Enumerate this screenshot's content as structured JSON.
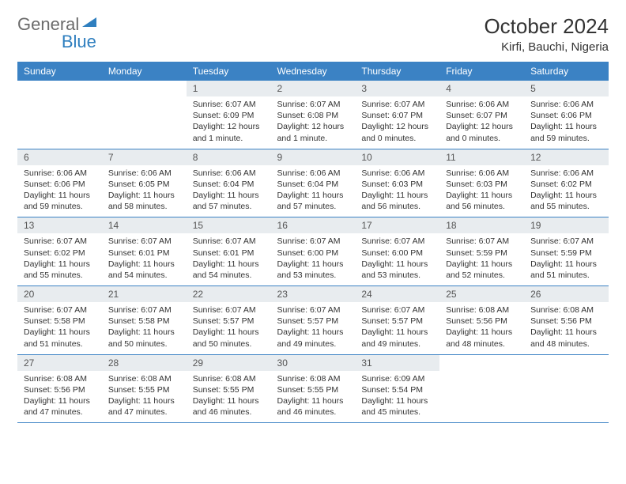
{
  "logo": {
    "word1": "General",
    "word2": "Blue"
  },
  "title": "October 2024",
  "location": "Kirfi, Bauchi, Nigeria",
  "colors": {
    "header_bg": "#3b82c4",
    "header_text": "#ffffff",
    "daynum_bg": "#e8ecef",
    "border": "#3b82c4",
    "logo_gray": "#6b6b6b",
    "logo_blue": "#2f7fbf"
  },
  "weekdays": [
    "Sunday",
    "Monday",
    "Tuesday",
    "Wednesday",
    "Thursday",
    "Friday",
    "Saturday"
  ],
  "grid": [
    [
      {
        "n": "",
        "sr": "",
        "ss": "",
        "dl": ""
      },
      {
        "n": "",
        "sr": "",
        "ss": "",
        "dl": ""
      },
      {
        "n": "1",
        "sr": "Sunrise: 6:07 AM",
        "ss": "Sunset: 6:09 PM",
        "dl": "Daylight: 12 hours and 1 minute."
      },
      {
        "n": "2",
        "sr": "Sunrise: 6:07 AM",
        "ss": "Sunset: 6:08 PM",
        "dl": "Daylight: 12 hours and 1 minute."
      },
      {
        "n": "3",
        "sr": "Sunrise: 6:07 AM",
        "ss": "Sunset: 6:07 PM",
        "dl": "Daylight: 12 hours and 0 minutes."
      },
      {
        "n": "4",
        "sr": "Sunrise: 6:06 AM",
        "ss": "Sunset: 6:07 PM",
        "dl": "Daylight: 12 hours and 0 minutes."
      },
      {
        "n": "5",
        "sr": "Sunrise: 6:06 AM",
        "ss": "Sunset: 6:06 PM",
        "dl": "Daylight: 11 hours and 59 minutes."
      }
    ],
    [
      {
        "n": "6",
        "sr": "Sunrise: 6:06 AM",
        "ss": "Sunset: 6:06 PM",
        "dl": "Daylight: 11 hours and 59 minutes."
      },
      {
        "n": "7",
        "sr": "Sunrise: 6:06 AM",
        "ss": "Sunset: 6:05 PM",
        "dl": "Daylight: 11 hours and 58 minutes."
      },
      {
        "n": "8",
        "sr": "Sunrise: 6:06 AM",
        "ss": "Sunset: 6:04 PM",
        "dl": "Daylight: 11 hours and 57 minutes."
      },
      {
        "n": "9",
        "sr": "Sunrise: 6:06 AM",
        "ss": "Sunset: 6:04 PM",
        "dl": "Daylight: 11 hours and 57 minutes."
      },
      {
        "n": "10",
        "sr": "Sunrise: 6:06 AM",
        "ss": "Sunset: 6:03 PM",
        "dl": "Daylight: 11 hours and 56 minutes."
      },
      {
        "n": "11",
        "sr": "Sunrise: 6:06 AM",
        "ss": "Sunset: 6:03 PM",
        "dl": "Daylight: 11 hours and 56 minutes."
      },
      {
        "n": "12",
        "sr": "Sunrise: 6:06 AM",
        "ss": "Sunset: 6:02 PM",
        "dl": "Daylight: 11 hours and 55 minutes."
      }
    ],
    [
      {
        "n": "13",
        "sr": "Sunrise: 6:07 AM",
        "ss": "Sunset: 6:02 PM",
        "dl": "Daylight: 11 hours and 55 minutes."
      },
      {
        "n": "14",
        "sr": "Sunrise: 6:07 AM",
        "ss": "Sunset: 6:01 PM",
        "dl": "Daylight: 11 hours and 54 minutes."
      },
      {
        "n": "15",
        "sr": "Sunrise: 6:07 AM",
        "ss": "Sunset: 6:01 PM",
        "dl": "Daylight: 11 hours and 54 minutes."
      },
      {
        "n": "16",
        "sr": "Sunrise: 6:07 AM",
        "ss": "Sunset: 6:00 PM",
        "dl": "Daylight: 11 hours and 53 minutes."
      },
      {
        "n": "17",
        "sr": "Sunrise: 6:07 AM",
        "ss": "Sunset: 6:00 PM",
        "dl": "Daylight: 11 hours and 53 minutes."
      },
      {
        "n": "18",
        "sr": "Sunrise: 6:07 AM",
        "ss": "Sunset: 5:59 PM",
        "dl": "Daylight: 11 hours and 52 minutes."
      },
      {
        "n": "19",
        "sr": "Sunrise: 6:07 AM",
        "ss": "Sunset: 5:59 PM",
        "dl": "Daylight: 11 hours and 51 minutes."
      }
    ],
    [
      {
        "n": "20",
        "sr": "Sunrise: 6:07 AM",
        "ss": "Sunset: 5:58 PM",
        "dl": "Daylight: 11 hours and 51 minutes."
      },
      {
        "n": "21",
        "sr": "Sunrise: 6:07 AM",
        "ss": "Sunset: 5:58 PM",
        "dl": "Daylight: 11 hours and 50 minutes."
      },
      {
        "n": "22",
        "sr": "Sunrise: 6:07 AM",
        "ss": "Sunset: 5:57 PM",
        "dl": "Daylight: 11 hours and 50 minutes."
      },
      {
        "n": "23",
        "sr": "Sunrise: 6:07 AM",
        "ss": "Sunset: 5:57 PM",
        "dl": "Daylight: 11 hours and 49 minutes."
      },
      {
        "n": "24",
        "sr": "Sunrise: 6:07 AM",
        "ss": "Sunset: 5:57 PM",
        "dl": "Daylight: 11 hours and 49 minutes."
      },
      {
        "n": "25",
        "sr": "Sunrise: 6:08 AM",
        "ss": "Sunset: 5:56 PM",
        "dl": "Daylight: 11 hours and 48 minutes."
      },
      {
        "n": "26",
        "sr": "Sunrise: 6:08 AM",
        "ss": "Sunset: 5:56 PM",
        "dl": "Daylight: 11 hours and 48 minutes."
      }
    ],
    [
      {
        "n": "27",
        "sr": "Sunrise: 6:08 AM",
        "ss": "Sunset: 5:56 PM",
        "dl": "Daylight: 11 hours and 47 minutes."
      },
      {
        "n": "28",
        "sr": "Sunrise: 6:08 AM",
        "ss": "Sunset: 5:55 PM",
        "dl": "Daylight: 11 hours and 47 minutes."
      },
      {
        "n": "29",
        "sr": "Sunrise: 6:08 AM",
        "ss": "Sunset: 5:55 PM",
        "dl": "Daylight: 11 hours and 46 minutes."
      },
      {
        "n": "30",
        "sr": "Sunrise: 6:08 AM",
        "ss": "Sunset: 5:55 PM",
        "dl": "Daylight: 11 hours and 46 minutes."
      },
      {
        "n": "31",
        "sr": "Sunrise: 6:09 AM",
        "ss": "Sunset: 5:54 PM",
        "dl": "Daylight: 11 hours and 45 minutes."
      },
      {
        "n": "",
        "sr": "",
        "ss": "",
        "dl": ""
      },
      {
        "n": "",
        "sr": "",
        "ss": "",
        "dl": ""
      }
    ]
  ]
}
